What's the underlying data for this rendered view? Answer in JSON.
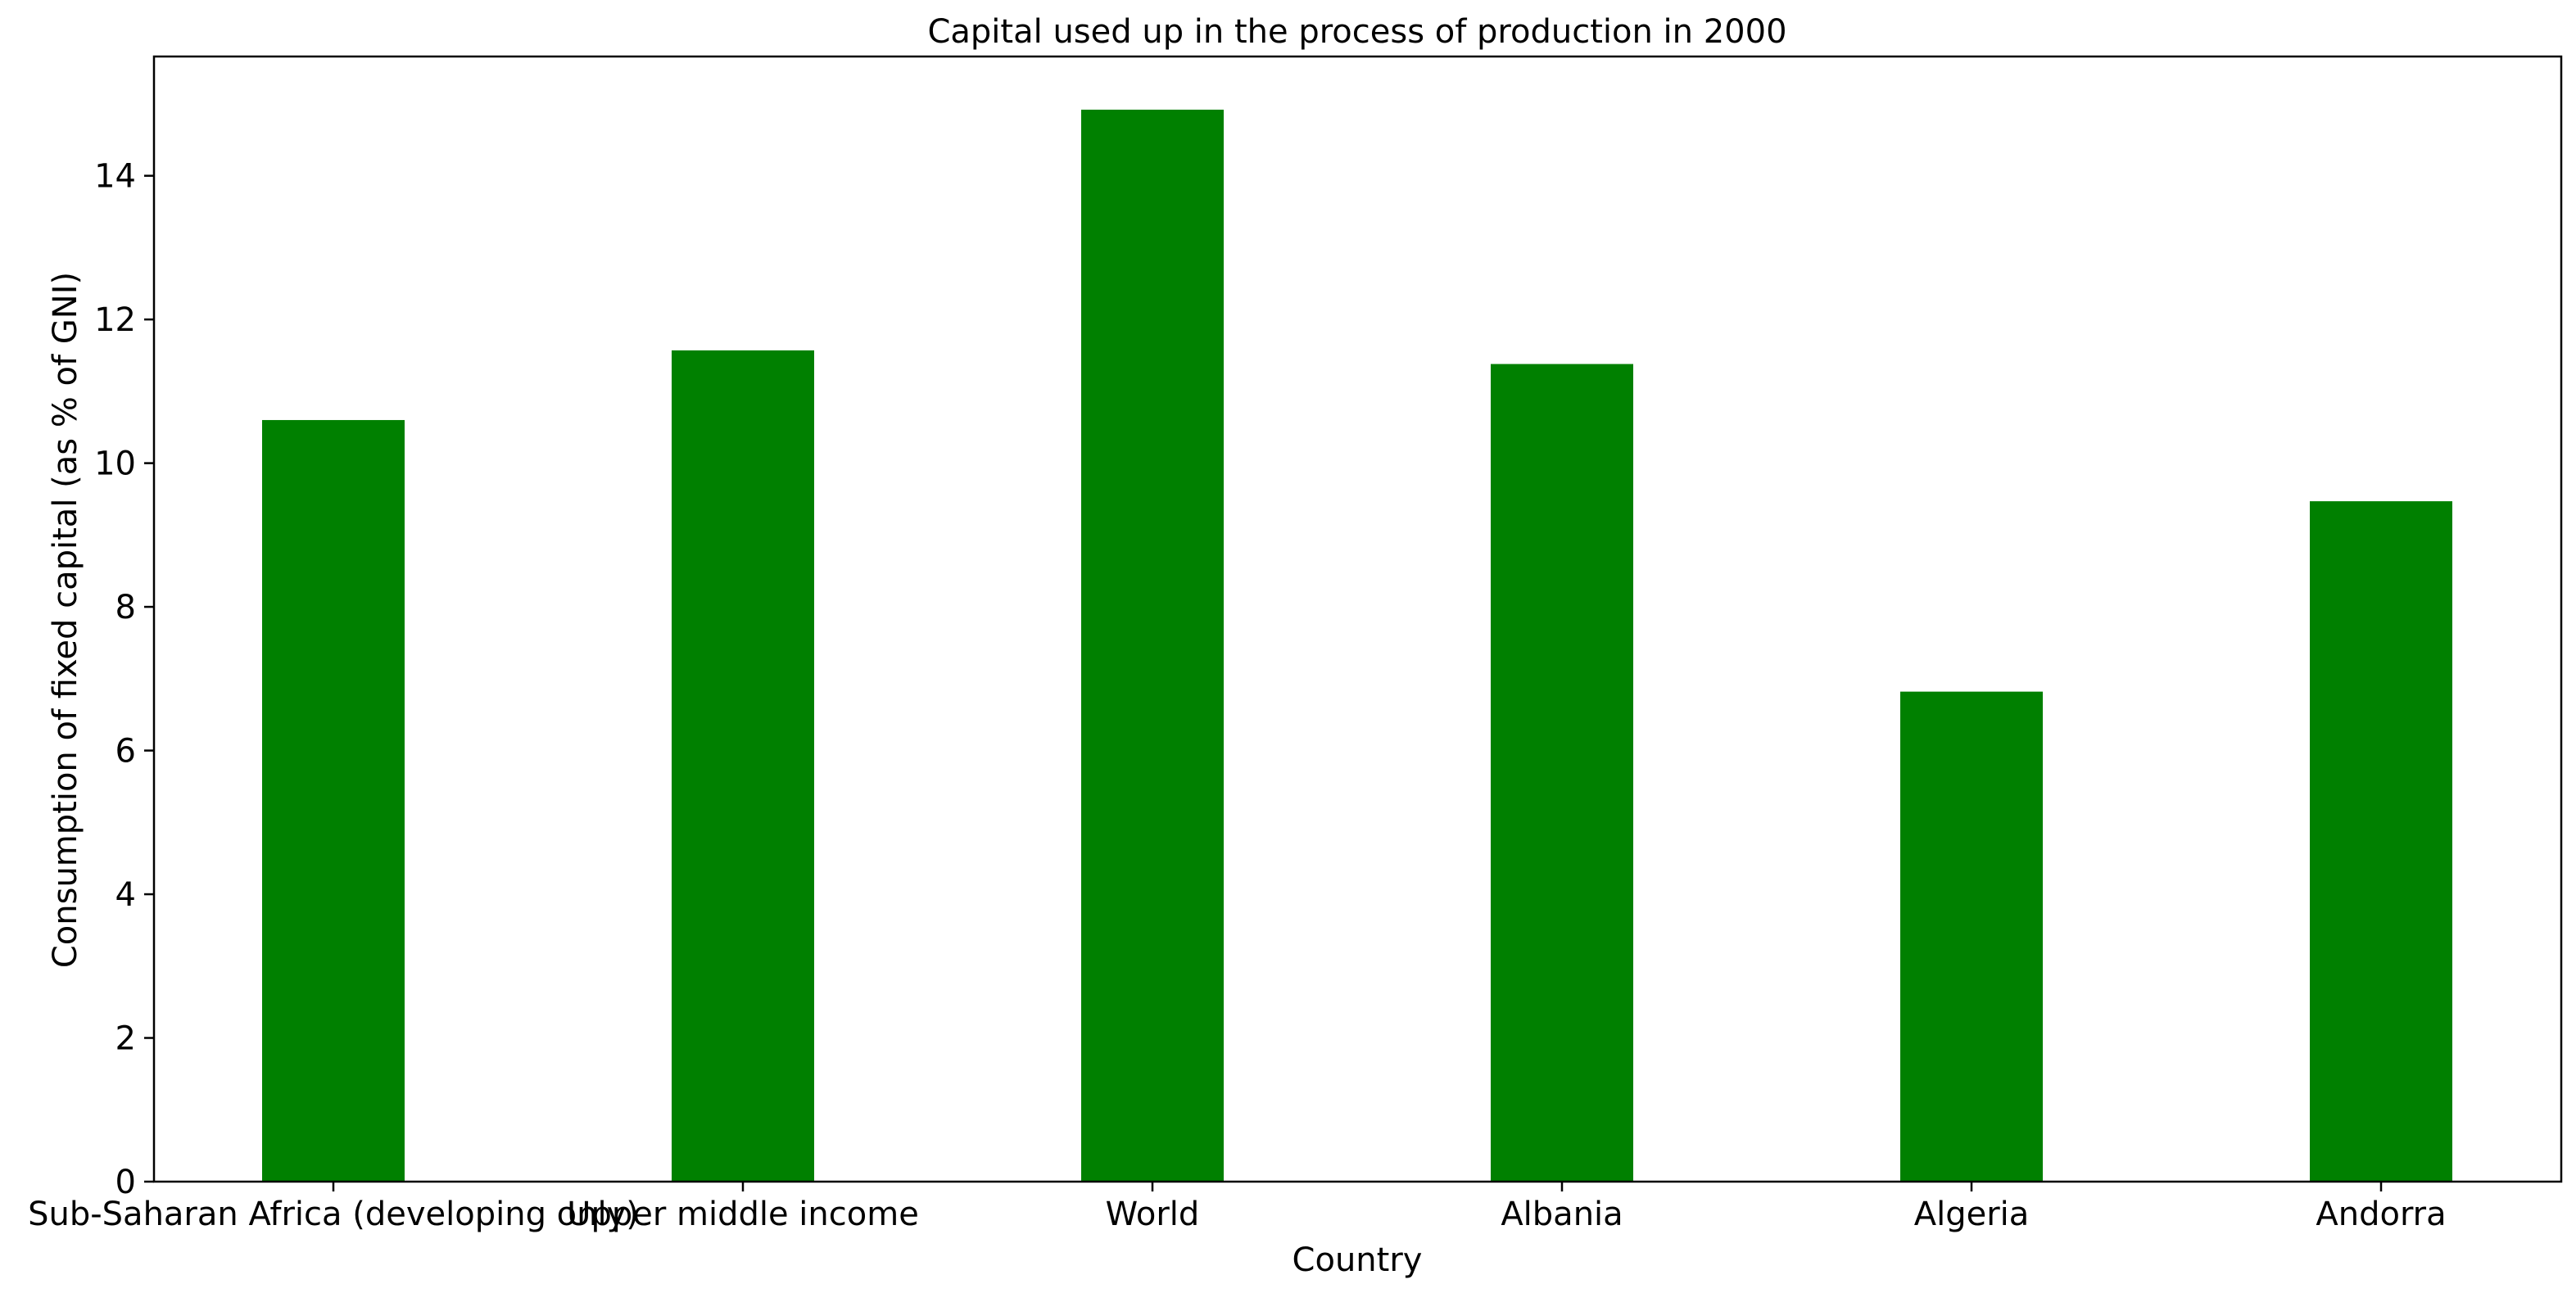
{
  "chart_data": {
    "type": "bar",
    "title": "Capital used up in the process of production in 2000",
    "xlabel": "Country",
    "ylabel": "Consumption of fixed capital (as % of GNI)",
    "categories": [
      "Sub-Saharan Africa (developing only)",
      "Upper middle income",
      "World",
      "Albania",
      "Algeria",
      "Andorra"
    ],
    "values": [
      10.6,
      11.57,
      14.92,
      11.38,
      6.82,
      9.47
    ],
    "ylim": [
      0,
      15.66
    ],
    "yticks": [
      0,
      2,
      4,
      6,
      8,
      10,
      12,
      14
    ],
    "grid": false,
    "legend": "none",
    "colors": {
      "bar": "#008000",
      "axis": "#000000",
      "background": "#ffffff"
    }
  }
}
